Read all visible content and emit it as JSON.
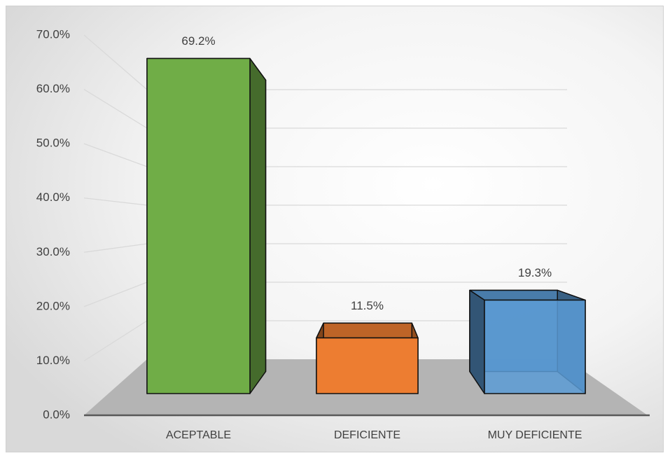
{
  "chart_data": {
    "type": "bar3d",
    "categories": [
      "ACEPTABLE",
      "DEFICIENTE",
      "MUY DEFICIENTE"
    ],
    "values": [
      69.2,
      11.5,
      19.3
    ],
    "value_labels": [
      "69.2%",
      "11.5%",
      "19.3%"
    ],
    "colors": [
      "#70ad47",
      "#ed7d31",
      "#5b9bd5"
    ],
    "ylim": [
      0,
      70
    ],
    "yticks": [
      {
        "value": 0,
        "label": "0.0%"
      },
      {
        "value": 10,
        "label": "10.0%"
      },
      {
        "value": 20,
        "label": "20.0%"
      },
      {
        "value": 30,
        "label": "30.0%"
      },
      {
        "value": 40,
        "label": "40.0%"
      },
      {
        "value": 50,
        "label": "50.0%"
      },
      {
        "value": 60,
        "label": "60.0%"
      },
      {
        "value": 70,
        "label": "70.0%"
      }
    ],
    "grid": true
  }
}
